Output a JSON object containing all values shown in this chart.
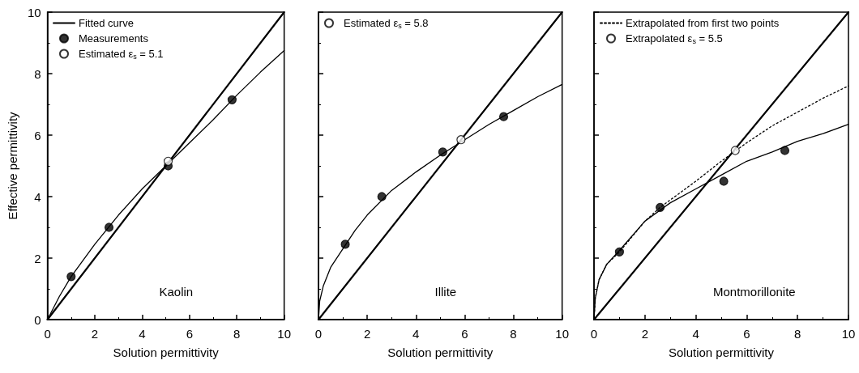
{
  "chart_data": [
    {
      "type": "line",
      "xlabel": "Solution permittivity",
      "ylabel": "Effective permittivity",
      "xlim": [
        0,
        10
      ],
      "ylim": [
        0,
        10
      ],
      "xticks": [
        0,
        2,
        4,
        6,
        8,
        10
      ],
      "yticks": [
        0,
        2,
        4,
        6,
        8,
        10
      ],
      "legend": "top left",
      "annotations": [
        "Kaolin"
      ],
      "series": [
        {
          "name": "Fitted curve",
          "color": "#000000",
          "x": [
            0,
            0.5,
            1,
            2,
            3,
            4,
            5,
            6,
            7,
            8,
            9,
            10
          ],
          "values": [
            0,
            0.75,
            1.4,
            2.45,
            3.4,
            4.25,
            5.0,
            5.75,
            6.5,
            7.3,
            8.05,
            8.75
          ]
        },
        {
          "name": "Measurements",
          "type": "scatter",
          "marker": "circle",
          "color": "#000000",
          "x": [
            1.0,
            2.6,
            5.1,
            7.8
          ],
          "values": [
            1.4,
            3.0,
            5.0,
            7.15
          ]
        },
        {
          "name": "Estimated ε$_{s}$ = 5.1",
          "type": "scatter",
          "marker": "circle",
          "color": "#ffffff",
          "x": [
            5.1
          ],
          "values": [
            5.15
          ]
        },
        {
          "type": "line",
          "color": "#000000",
          "x": [
            0,
            10
          ],
          "values": [
            0,
            10
          ]
        }
      ]
    },
    {
      "type": "line",
      "xlabel": "Solution permittivity",
      "xlim": [
        0,
        10
      ],
      "ylim": [
        0,
        10
      ],
      "xticks": [
        0,
        2,
        4,
        6,
        8,
        10
      ],
      "yticks": [
        0,
        2,
        4,
        6,
        8,
        10
      ],
      "tick_labels": "x",
      "legend": "top left",
      "annotations": [
        "Illite"
      ],
      "series": [
        {
          "color": "#000000",
          "x": [
            0,
            0.05,
            0.2,
            0.5,
            1,
            1.5,
            2,
            3,
            4,
            5,
            6,
            7,
            8,
            9,
            10
          ],
          "values": [
            0,
            0.6,
            1.1,
            1.7,
            2.3,
            2.9,
            3.4,
            4.2,
            4.8,
            5.35,
            5.85,
            6.35,
            6.8,
            7.25,
            7.65
          ]
        },
        {
          "type": "scatter",
          "marker": "circle",
          "color": "#000000",
          "x": [
            1.1,
            2.6,
            5.1,
            7.6
          ],
          "values": [
            2.45,
            4.0,
            5.45,
            6.6
          ]
        },
        {
          "name": "Estimated ε$_{s}$ = 5.8",
          "type": "scatter",
          "marker": "circle",
          "color": "#ffffff",
          "x": [
            5.85
          ],
          "values": [
            5.85
          ]
        },
        {
          "type": "line",
          "color": "#000000",
          "x": [
            0,
            10
          ],
          "values": [
            0,
            10
          ]
        }
      ]
    },
    {
      "type": "line",
      "xlabel": "Solution permittivity",
      "xlim": [
        0,
        10
      ],
      "ylim": [
        0,
        10
      ],
      "xticks": [
        0,
        2,
        4,
        6,
        8,
        10
      ],
      "yticks": [
        0,
        2,
        4,
        6,
        8,
        10
      ],
      "tick_labels": "x",
      "legend": "top left",
      "annotations": [
        "Montmorillonite"
      ],
      "series": [
        {
          "name": "Extrapolated from first two points",
          "type": "line",
          "line_style": "dotted",
          "color": "#000000",
          "x": [
            0,
            0.05,
            0.2,
            0.5,
            1,
            2,
            2.6,
            4,
            5,
            6,
            7,
            8,
            9,
            10
          ],
          "values": [
            0,
            0.7,
            1.3,
            1.8,
            2.2,
            3.2,
            3.65,
            4.5,
            5.15,
            5.75,
            6.3,
            6.75,
            7.2,
            7.6
          ]
        },
        {
          "name": "Extrapolated ε$_{s}$ = 5.5",
          "type": "scatter",
          "marker": "circle",
          "color": "#ffffff",
          "x": [
            5.55
          ],
          "values": [
            5.5
          ]
        },
        {
          "color": "#000000",
          "x": [
            0,
            0.05,
            0.2,
            0.5,
            1,
            2,
            3,
            4,
            5,
            6,
            7,
            8,
            9,
            10
          ],
          "values": [
            0,
            0.7,
            1.3,
            1.8,
            2.25,
            3.2,
            3.8,
            4.25,
            4.7,
            5.15,
            5.45,
            5.8,
            6.05,
            6.35
          ]
        },
        {
          "type": "scatter",
          "marker": "circle",
          "color": "#000000",
          "x": [
            1.0,
            2.6,
            5.1,
            7.5
          ],
          "values": [
            2.2,
            3.65,
            4.5,
            5.5
          ]
        },
        {
          "type": "line",
          "color": "#000000",
          "x": [
            0,
            10
          ],
          "values": [
            0,
            10
          ]
        }
      ]
    }
  ]
}
